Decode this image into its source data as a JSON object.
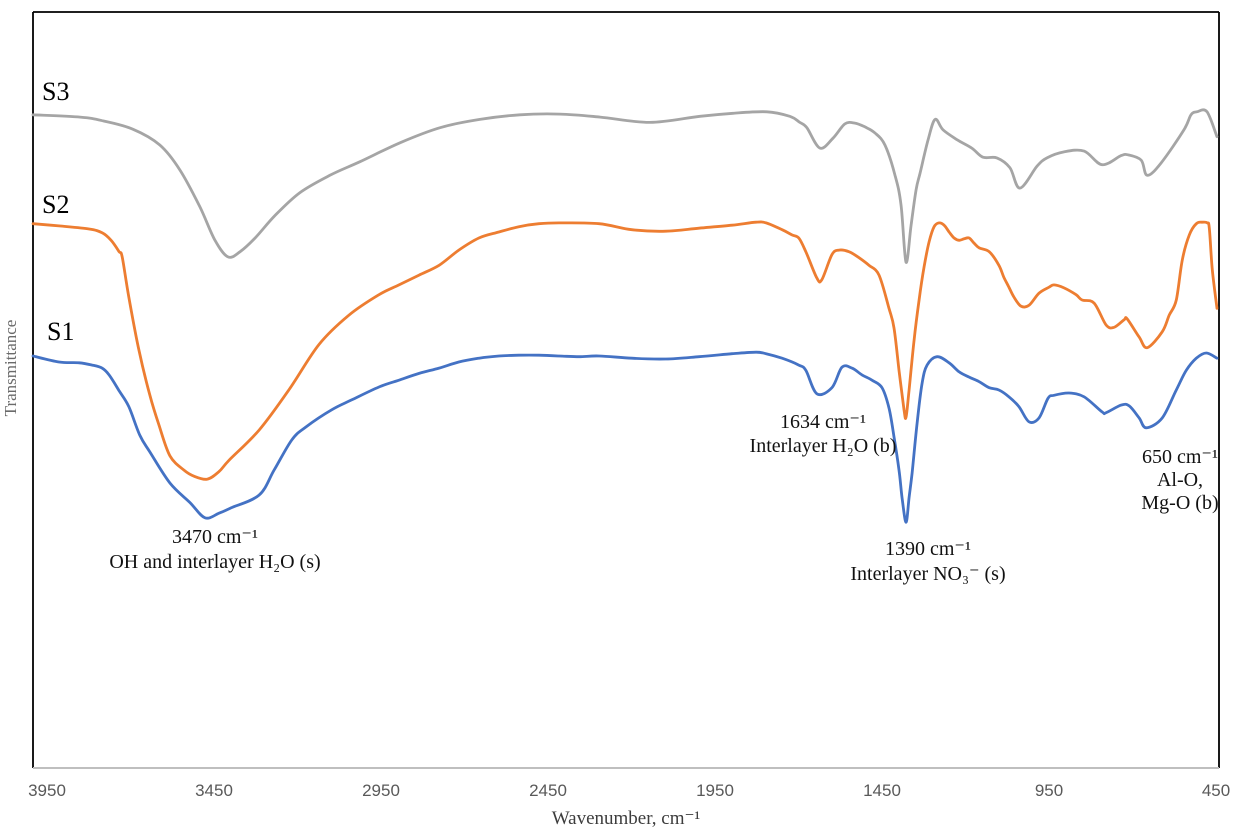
{
  "figure": {
    "background": "#ffffff",
    "frame_color": "#000000",
    "baseline_color": "#bfbfbf"
  },
  "chart_data": {
    "type": "line",
    "title": "",
    "xlabel": "Wavenumber, cm⁻¹",
    "ylabel": "Transmittance",
    "x_ticks": [
      "3950",
      "3450",
      "2950",
      "2450",
      "1950",
      "1450",
      "950",
      "450"
    ],
    "x_range": [
      3950,
      450
    ],
    "x_axis_reversed": true,
    "y_ticks": [],
    "y_scale_note": "relative transmittance, arbitrary units 0-100",
    "grid": false,
    "legend": "inline curve labels",
    "series": [
      {
        "name": "S3",
        "color": "#A5A5A5",
        "points": [
          [
            3992,
            86.4
          ],
          [
            3851,
            86.1
          ],
          [
            3782,
            85.6
          ],
          [
            3693,
            84.5
          ],
          [
            3612,
            82.4
          ],
          [
            3552,
            79.1
          ],
          [
            3492,
            74.2
          ],
          [
            3447,
            69.8
          ],
          [
            3408,
            67.6
          ],
          [
            3372,
            68.3
          ],
          [
            3327,
            70.1
          ],
          [
            3267,
            73.1
          ],
          [
            3193,
            76.1
          ],
          [
            3103,
            78.4
          ],
          [
            3013,
            80.2
          ],
          [
            2893,
            82.7
          ],
          [
            2773,
            84.7
          ],
          [
            2654,
            85.8
          ],
          [
            2534,
            86.4
          ],
          [
            2414,
            86.5
          ],
          [
            2294,
            86.1
          ],
          [
            2145,
            85.4
          ],
          [
            1995,
            86.2
          ],
          [
            1896,
            86.6
          ],
          [
            1795,
            86.8
          ],
          [
            1726,
            86.2
          ],
          [
            1696,
            85.4
          ],
          [
            1675,
            84.7
          ],
          [
            1636,
            82.0
          ],
          [
            1597,
            83.3
          ],
          [
            1561,
            85.2
          ],
          [
            1531,
            85.3
          ],
          [
            1501,
            84.8
          ],
          [
            1471,
            84.0
          ],
          [
            1441,
            82.4
          ],
          [
            1411,
            78.4
          ],
          [
            1393,
            74.5
          ],
          [
            1378,
            66.9
          ],
          [
            1363,
            71.8
          ],
          [
            1348,
            76.5
          ],
          [
            1336,
            78.7
          ],
          [
            1312,
            83.1
          ],
          [
            1291,
            85.8
          ],
          [
            1267,
            84.4
          ],
          [
            1225,
            83.1
          ],
          [
            1181,
            82.0
          ],
          [
            1148,
            80.8
          ],
          [
            1106,
            80.7
          ],
          [
            1067,
            79.4
          ],
          [
            1037,
            76.7
          ],
          [
            986,
            79.6
          ],
          [
            956,
            80.7
          ],
          [
            905,
            81.5
          ],
          [
            845,
            81.6
          ],
          [
            791,
            79.8
          ],
          [
            734,
            81.0
          ],
          [
            713,
            81.1
          ],
          [
            674,
            80.4
          ],
          [
            656,
            78.4
          ],
          [
            615,
            80.0
          ],
          [
            546,
            84.4
          ],
          [
            525,
            86.4
          ],
          [
            507,
            86.8
          ],
          [
            477,
            86.8
          ],
          [
            447,
            83.5
          ]
        ]
      },
      {
        "name": "S2",
        "color": "#ED7D31",
        "points": [
          [
            3992,
            72.0
          ],
          [
            3914,
            71.7
          ],
          [
            3824,
            71.3
          ],
          [
            3785,
            70.8
          ],
          [
            3758,
            69.8
          ],
          [
            3734,
            68.3
          ],
          [
            3725,
            67.6
          ],
          [
            3705,
            62.3
          ],
          [
            3675,
            55.3
          ],
          [
            3642,
            49.3
          ],
          [
            3615,
            45.4
          ],
          [
            3582,
            41.3
          ],
          [
            3540,
            39.4
          ],
          [
            3510,
            38.6
          ],
          [
            3471,
            38.2
          ],
          [
            3435,
            39.2
          ],
          [
            3405,
            40.7
          ],
          [
            3315,
            44.7
          ],
          [
            3226,
            50.0
          ],
          [
            3136,
            56.0
          ],
          [
            3046,
            59.9
          ],
          [
            2956,
            62.6
          ],
          [
            2896,
            63.9
          ],
          [
            2836,
            65.2
          ],
          [
            2776,
            66.5
          ],
          [
            2717,
            68.5
          ],
          [
            2657,
            70.1
          ],
          [
            2597,
            70.9
          ],
          [
            2537,
            71.6
          ],
          [
            2477,
            72.0
          ],
          [
            2417,
            72.1
          ],
          [
            2297,
            72.0
          ],
          [
            2199,
            71.2
          ],
          [
            2097,
            71.0
          ],
          [
            1998,
            71.4
          ],
          [
            1899,
            71.8
          ],
          [
            1827,
            72.2
          ],
          [
            1797,
            72.1
          ],
          [
            1749,
            71.2
          ],
          [
            1719,
            70.5
          ],
          [
            1699,
            70.1
          ],
          [
            1678,
            68.3
          ],
          [
            1645,
            64.8
          ],
          [
            1630,
            64.6
          ],
          [
            1600,
            67.9
          ],
          [
            1579,
            68.5
          ],
          [
            1549,
            68.3
          ],
          [
            1519,
            67.5
          ],
          [
            1489,
            66.5
          ],
          [
            1459,
            65.2
          ],
          [
            1429,
            60.8
          ],
          [
            1414,
            58.2
          ],
          [
            1399,
            52.6
          ],
          [
            1384,
            47.4
          ],
          [
            1378,
            46.4
          ],
          [
            1369,
            50.0
          ],
          [
            1354,
            56.6
          ],
          [
            1339,
            61.9
          ],
          [
            1324,
            66.3
          ],
          [
            1309,
            69.6
          ],
          [
            1294,
            71.6
          ],
          [
            1279,
            72.1
          ],
          [
            1264,
            71.8
          ],
          [
            1249,
            70.9
          ],
          [
            1234,
            70.1
          ],
          [
            1219,
            69.8
          ],
          [
            1204,
            70.0
          ],
          [
            1189,
            70.1
          ],
          [
            1174,
            69.4
          ],
          [
            1159,
            68.8
          ],
          [
            1129,
            68.3
          ],
          [
            1100,
            66.5
          ],
          [
            1085,
            64.9
          ],
          [
            1070,
            63.6
          ],
          [
            1055,
            62.3
          ],
          [
            1034,
            61.1
          ],
          [
            1010,
            61.2
          ],
          [
            980,
            62.8
          ],
          [
            950,
            63.6
          ],
          [
            935,
            63.9
          ],
          [
            905,
            63.5
          ],
          [
            869,
            62.6
          ],
          [
            851,
            61.9
          ],
          [
            815,
            61.5
          ],
          [
            779,
            58.6
          ],
          [
            755,
            58.3
          ],
          [
            725,
            59.3
          ],
          [
            716,
            59.4
          ],
          [
            680,
            57.0
          ],
          [
            656,
            55.6
          ],
          [
            611,
            57.7
          ],
          [
            590,
            59.9
          ],
          [
            569,
            61.9
          ],
          [
            551,
            67.2
          ],
          [
            530,
            70.5
          ],
          [
            509,
            72.0
          ],
          [
            491,
            72.2
          ],
          [
            476,
            72.1
          ],
          [
            470,
            71.4
          ],
          [
            461,
            65.9
          ],
          [
            447,
            60.8
          ]
        ]
      },
      {
        "name": "S1",
        "color": "#4472C4",
        "points": [
          [
            3992,
            54.5
          ],
          [
            3914,
            53.7
          ],
          [
            3854,
            53.6
          ],
          [
            3815,
            53.3
          ],
          [
            3785,
            52.9
          ],
          [
            3764,
            52.0
          ],
          [
            3734,
            49.9
          ],
          [
            3705,
            47.8
          ],
          [
            3672,
            44.0
          ],
          [
            3642,
            41.8
          ],
          [
            3582,
            37.7
          ],
          [
            3522,
            35.1
          ],
          [
            3477,
            33.1
          ],
          [
            3435,
            33.7
          ],
          [
            3399,
            34.4
          ],
          [
            3315,
            36.1
          ],
          [
            3270,
            39.4
          ],
          [
            3217,
            43.4
          ],
          [
            3175,
            45.1
          ],
          [
            3097,
            47.4
          ],
          [
            3037,
            48.7
          ],
          [
            2956,
            50.4
          ],
          [
            2896,
            51.3
          ],
          [
            2836,
            52.2
          ],
          [
            2776,
            52.9
          ],
          [
            2717,
            53.7
          ],
          [
            2657,
            54.2
          ],
          [
            2597,
            54.5
          ],
          [
            2537,
            54.6
          ],
          [
            2477,
            54.6
          ],
          [
            2417,
            54.5
          ],
          [
            2357,
            54.4
          ],
          [
            2297,
            54.5
          ],
          [
            2199,
            54.2
          ],
          [
            2097,
            54.1
          ],
          [
            1998,
            54.4
          ],
          [
            1899,
            54.8
          ],
          [
            1827,
            55.0
          ],
          [
            1797,
            54.8
          ],
          [
            1749,
            54.2
          ],
          [
            1699,
            53.3
          ],
          [
            1678,
            52.6
          ],
          [
            1645,
            49.5
          ],
          [
            1600,
            50.3
          ],
          [
            1570,
            53.0
          ],
          [
            1540,
            52.9
          ],
          [
            1510,
            52.0
          ],
          [
            1480,
            51.3
          ],
          [
            1450,
            50.3
          ],
          [
            1429,
            47.6
          ],
          [
            1414,
            43.8
          ],
          [
            1399,
            39.4
          ],
          [
            1390,
            35.8
          ],
          [
            1378,
            32.5
          ],
          [
            1369,
            35.8
          ],
          [
            1360,
            39.0
          ],
          [
            1345,
            45.6
          ],
          [
            1330,
            50.9
          ],
          [
            1315,
            53.3
          ],
          [
            1285,
            54.4
          ],
          [
            1249,
            53.6
          ],
          [
            1219,
            52.4
          ],
          [
            1189,
            51.7
          ],
          [
            1159,
            51.1
          ],
          [
            1129,
            50.3
          ],
          [
            1100,
            50.0
          ],
          [
            1070,
            49.1
          ],
          [
            1040,
            47.8
          ],
          [
            1010,
            45.8
          ],
          [
            980,
            46.3
          ],
          [
            953,
            48.9
          ],
          [
            935,
            49.3
          ],
          [
            890,
            49.6
          ],
          [
            845,
            49.1
          ],
          [
            791,
            47.1
          ],
          [
            779,
            47.0
          ],
          [
            734,
            48.0
          ],
          [
            710,
            47.9
          ],
          [
            680,
            46.3
          ],
          [
            659,
            45.0
          ],
          [
            611,
            46.3
          ],
          [
            569,
            50.0
          ],
          [
            539,
            52.6
          ],
          [
            509,
            54.2
          ],
          [
            479,
            54.9
          ],
          [
            447,
            54.2
          ]
        ]
      }
    ],
    "annotations": [
      {
        "band_cm": 3470,
        "lines": [
          "3470 cm⁻¹",
          "OH and interlayer H₂O (s)"
        ]
      },
      {
        "band_cm": 1634,
        "lines": [
          "1634 cm⁻¹",
          "Interlayer H₂O (b)"
        ]
      },
      {
        "band_cm": 1390,
        "lines": [
          "1390 cm⁻¹",
          "Interlayer NO₃⁻ (s)"
        ]
      },
      {
        "band_cm": 650,
        "lines": [
          "650 cm⁻¹",
          "Al-O,",
          "Mg-O (b)"
        ]
      }
    ]
  }
}
